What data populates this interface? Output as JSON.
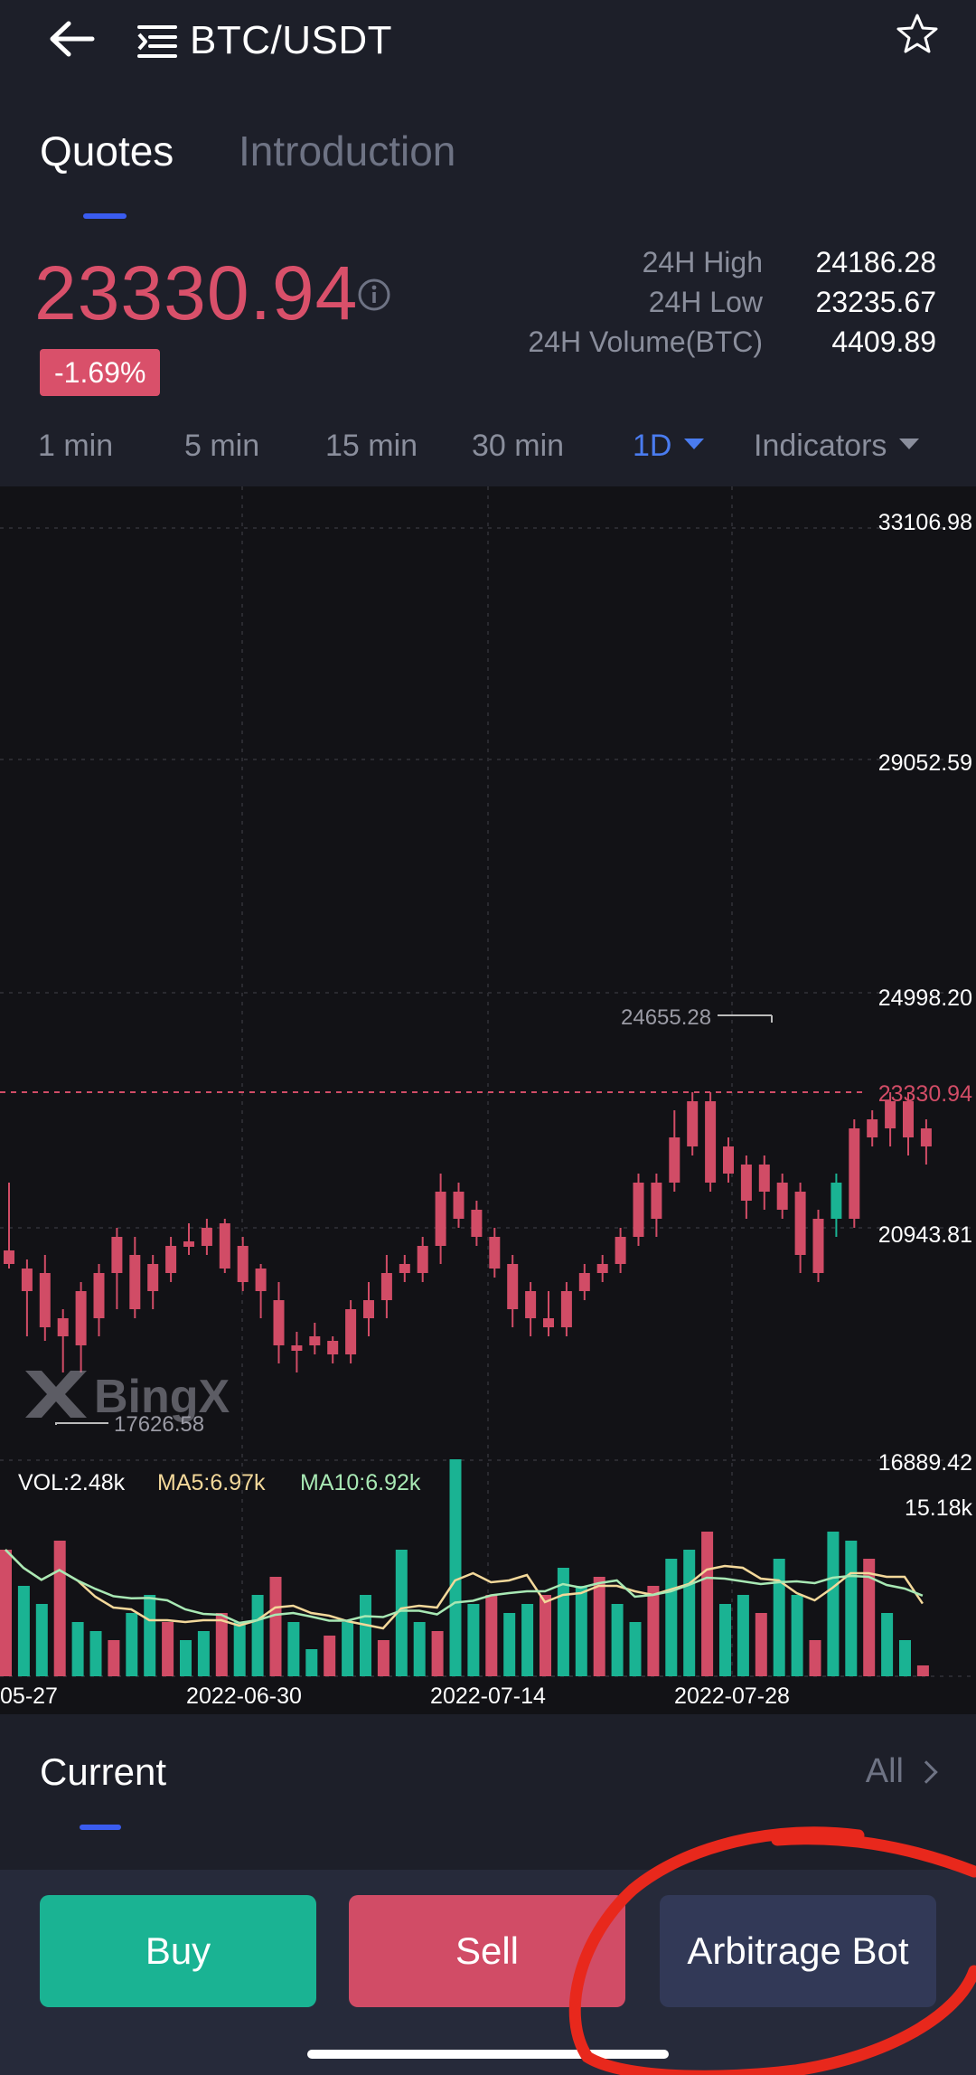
{
  "header": {
    "title": "BTC/USDT",
    "back_icon": "arrow-left-icon",
    "menu_icon": "list-menu-icon",
    "favorite_icon": "star-icon"
  },
  "tabs": [
    {
      "label": "Quotes",
      "active": true
    },
    {
      "label": "Introduction",
      "active": false
    }
  ],
  "price": {
    "last": "23330.94",
    "change": "-1.69%",
    "color": "#d9506a",
    "stats": [
      {
        "label": "24H High",
        "value": "24186.28"
      },
      {
        "label": "24H Low",
        "value": "23235.67"
      },
      {
        "label": "24H Volume(BTC)",
        "value": "4409.89"
      }
    ]
  },
  "intervals": [
    {
      "label": "1 min"
    },
    {
      "label": "5 min"
    },
    {
      "label": "15 min"
    },
    {
      "label": "30 min"
    },
    {
      "label": "1D",
      "active": true
    },
    {
      "label": "Indicators"
    }
  ],
  "chart": {
    "watermark": "BingX",
    "price_axis": [
      "33106.98",
      "29052.59",
      "24998.20",
      "23330.94",
      "20943.81",
      "16889.42"
    ],
    "high_marker": "24655.28",
    "low_marker": "17626.58",
    "volume_legend": {
      "vol": "VOL:2.48k",
      "ma5": "MA5:6.97k",
      "ma10": "MA10:6.92k"
    },
    "volume_axis_max": "15.18k",
    "date_axis": [
      "05-27",
      "2022-06-30",
      "2022-07-14",
      "2022-07-28"
    ],
    "colors": {
      "up": "#1ab393",
      "down": "#d14c66",
      "ma5": "#f3d89a",
      "ma10": "#a8e8b4"
    }
  },
  "current": {
    "title": "Current",
    "all_label": "All"
  },
  "actions": {
    "buy": "Buy",
    "sell": "Sell",
    "bot": "Arbitrage Bot"
  }
}
